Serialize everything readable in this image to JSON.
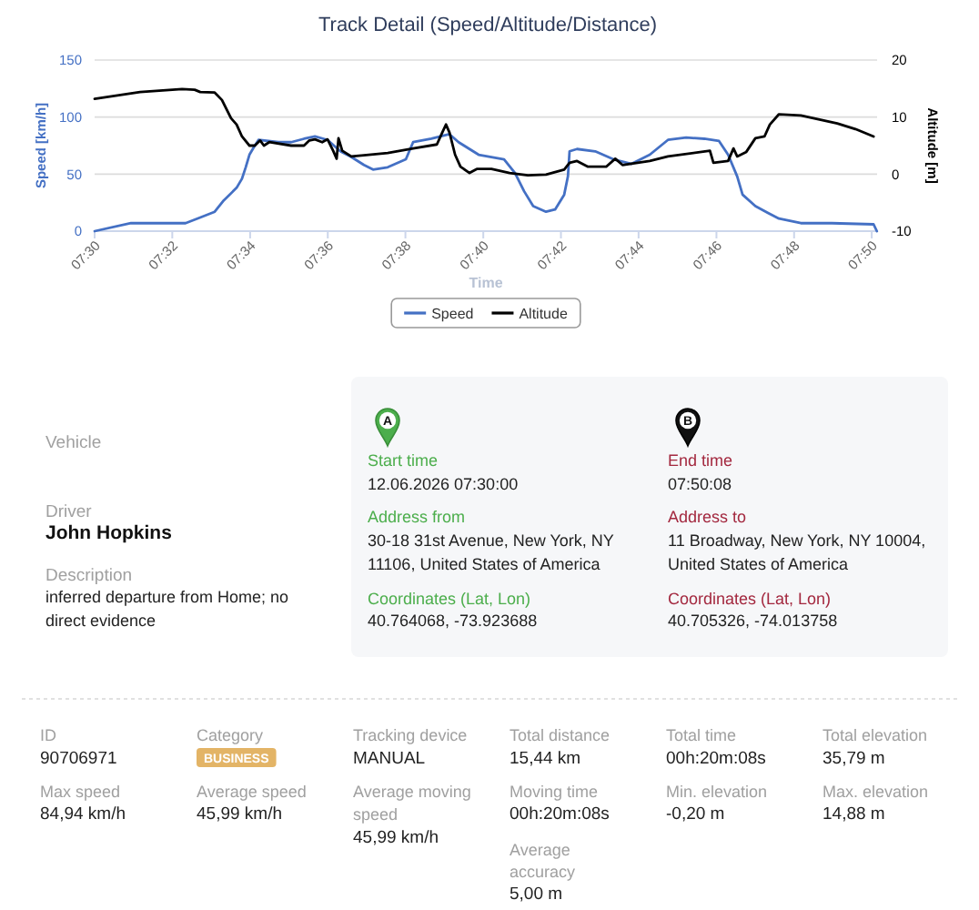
{
  "chart_data": [
    {
      "type": "line",
      "title": "Track Detail (Speed/Altitude/Distance)",
      "xlabel": "Time",
      "ylabel": "Speed [km/h]",
      "y2label": "Altitude [m]",
      "xlim": [
        7.5,
        7.8356
      ],
      "xticks": [
        {
          "value": 7.5,
          "label": "07:30"
        },
        {
          "value": 7.5333,
          "label": "07:32"
        },
        {
          "value": 7.5667,
          "label": "07:34"
        },
        {
          "value": 7.6,
          "label": "07:36"
        },
        {
          "value": 7.6333,
          "label": "07:38"
        },
        {
          "value": 7.6667,
          "label": "07:40"
        },
        {
          "value": 7.7,
          "label": "07:42"
        },
        {
          "value": 7.7333,
          "label": "07:44"
        },
        {
          "value": 7.7667,
          "label": "07:46"
        },
        {
          "value": 7.8,
          "label": "07:48"
        },
        {
          "value": 7.8333,
          "label": "07:50"
        }
      ],
      "ylim": [
        0,
        150
      ],
      "yticks": [
        0,
        50,
        100,
        150
      ],
      "y2lim": [
        -10,
        20
      ],
      "y2ticks": [
        -10,
        0,
        10,
        20
      ],
      "grid": "y",
      "legend": "bottom",
      "series": [
        {
          "name": "Speed",
          "color": "#4470c4",
          "x": [
            7.5,
            7.5156,
            7.539,
            7.5453,
            7.5515,
            7.5554,
            7.5609,
            7.5632,
            7.5648,
            7.5664,
            7.5687,
            7.5703,
            7.5788,
            7.5843,
            7.5898,
            7.5945,
            7.5999,
            7.6054,
            7.6101,
            7.6155,
            7.6194,
            7.6257,
            7.6335,
            7.6366,
            7.6444,
            7.6522,
            7.6561,
            7.6647,
            7.6756,
            7.6803,
            7.6842,
            7.6881,
            7.6936,
            7.6975,
            7.7014,
            7.703,
            7.7037,
            7.7069,
            7.7147,
            7.7225,
            7.7303,
            7.7381,
            7.7459,
            7.7537,
            7.7615,
            7.7678,
            7.7717,
            7.7756,
            7.7779,
            7.7834,
            7.7888,
            7.7935,
            7.8029,
            7.8162,
            7.8341,
            7.8355
          ],
          "values": [
            0,
            7,
            7,
            12,
            17,
            27,
            38,
            46,
            56,
            67,
            75,
            80,
            78,
            78,
            81,
            83,
            80,
            70,
            65,
            58,
            54,
            56,
            63,
            78,
            81,
            85,
            78,
            67,
            63,
            51,
            35,
            22,
            17,
            19,
            32,
            48,
            70,
            72,
            70,
            63,
            59,
            67,
            80,
            82,
            81,
            79,
            67,
            48,
            32,
            22,
            16,
            11,
            7,
            7,
            6,
            0
          ]
        },
        {
          "name": "Altitude",
          "color": "#000000",
          "axis": "y2",
          "x": [
            7.5,
            7.5195,
            7.5375,
            7.5429,
            7.5453,
            7.5515,
            7.5546,
            7.5585,
            7.5609,
            7.5632,
            7.5664,
            7.5687,
            7.571,
            7.5726,
            7.5749,
            7.5843,
            7.5898,
            7.5921,
            7.5945,
            7.5976,
            7.5999,
            7.6023,
            7.6038,
            7.6046,
            7.6062,
            7.6101,
            7.6155,
            7.6257,
            7.6366,
            7.6468,
            7.6491,
            7.6507,
            7.6522,
            7.6546,
            7.6569,
            7.6608,
            7.6639,
            7.6702,
            7.678,
            7.6858,
            7.6936,
            7.7014,
            7.7037,
            7.7069,
            7.7116,
            7.7194,
            7.7233,
            7.7264,
            7.7381,
            7.7459,
            7.7639,
            7.7654,
            7.7717,
            7.774,
            7.7756,
            7.7795,
            7.7834,
            7.7873,
            7.7896,
            7.7935,
            7.8029,
            7.8185,
            7.8263,
            7.8341
          ],
          "values": [
            13.2,
            14.4,
            14.9,
            14.8,
            14.4,
            14.3,
            13,
            9.8,
            8.7,
            6.6,
            5,
            5,
            5.9,
            5,
            5.6,
            5,
            5,
            5.9,
            6.1,
            5.6,
            6.1,
            4.1,
            2.7,
            6.3,
            4.1,
            3.1,
            3.3,
            3.7,
            4.5,
            5.2,
            7.3,
            8.7,
            7.3,
            3.4,
            1.3,
            0.2,
            0.9,
            0.9,
            0.2,
            -0.2,
            -0.1,
            0.8,
            2,
            2.3,
            1.3,
            1.3,
            2.7,
            1.6,
            2.3,
            3.1,
            4.1,
            2,
            2.3,
            4.5,
            3.1,
            3.9,
            6.3,
            6.6,
            8.7,
            10.5,
            10.3,
            8.9,
            7.9,
            6.6
          ]
        }
      ]
    },
    {
      "type": "other",
      "annotations": [
        "Vehicle",
        "Driver",
        "John Hopkins",
        "Description",
        "inferred departure from Home; no direct evidence",
        "A",
        "Start time",
        "12.06.2026 07:30:00",
        "Address from",
        "30-18 31st Avenue, New York, NY 11106, United States of America",
        "Coordinates (Lat, Lon)",
        "40.764068, -73.923688",
        "B",
        "End time",
        "07:50:08",
        "Address to",
        "11 Broadway, New York, NY 10004, United States of America",
        "Coordinates (Lat, Lon)",
        "40.705326, -74.013758",
        "ID",
        "90706971",
        "Category",
        "BUSINESS",
        "Tracking device",
        "MANUAL",
        "Total distance",
        "15,44 km",
        "Total time",
        "00h:20m:08s",
        "Total elevation",
        "35,79 m",
        "Max speed",
        "84,94 km/h",
        "Average speed",
        "45,99 km/h",
        "Average moving speed",
        "45,99 km/h",
        "Moving time",
        "00h:20m:08s",
        "Min. elevation",
        "-0,20 m",
        "Max. elevation",
        "14,88 m",
        "Average accuracy",
        "5,00 m"
      ]
    }
  ]
}
